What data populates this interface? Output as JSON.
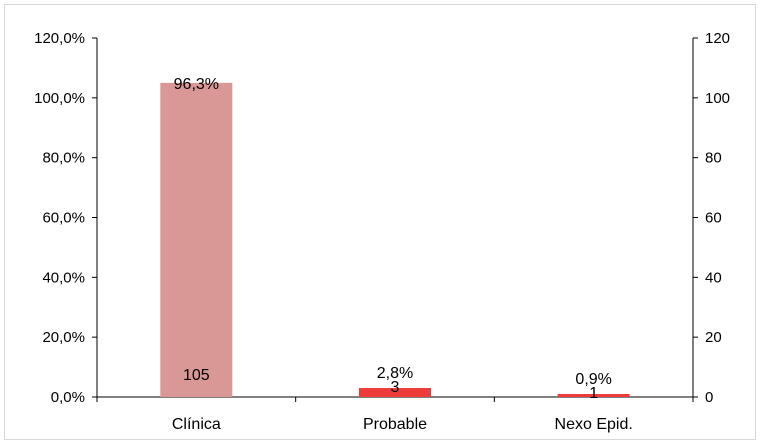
{
  "chart_data": {
    "type": "bar",
    "categories": [
      "Clínica",
      "Probable",
      "Nexo Epid."
    ],
    "series": [
      {
        "values": [
          105,
          3,
          1
        ],
        "colors": [
          "#d99795",
          "#ef3b3a",
          "#ef3b3a"
        ]
      }
    ],
    "percent_labels": [
      "96,3%",
      "2,8%",
      "0,9%"
    ],
    "count_labels": [
      "105",
      "3",
      "1"
    ],
    "y_left": {
      "ticks": [
        "0,0%",
        "20,0%",
        "40,0%",
        "60,0%",
        "80,0%",
        "100,0%",
        "120,0%"
      ],
      "ylim": [
        0,
        1.2
      ]
    },
    "y_right": {
      "ticks": [
        "0",
        "20",
        "40",
        "60",
        "80",
        "100",
        "120"
      ],
      "ylim": [
        0,
        120
      ]
    },
    "title": "",
    "xlabel": "",
    "ylabel": "",
    "grid": false,
    "legend": "none"
  }
}
